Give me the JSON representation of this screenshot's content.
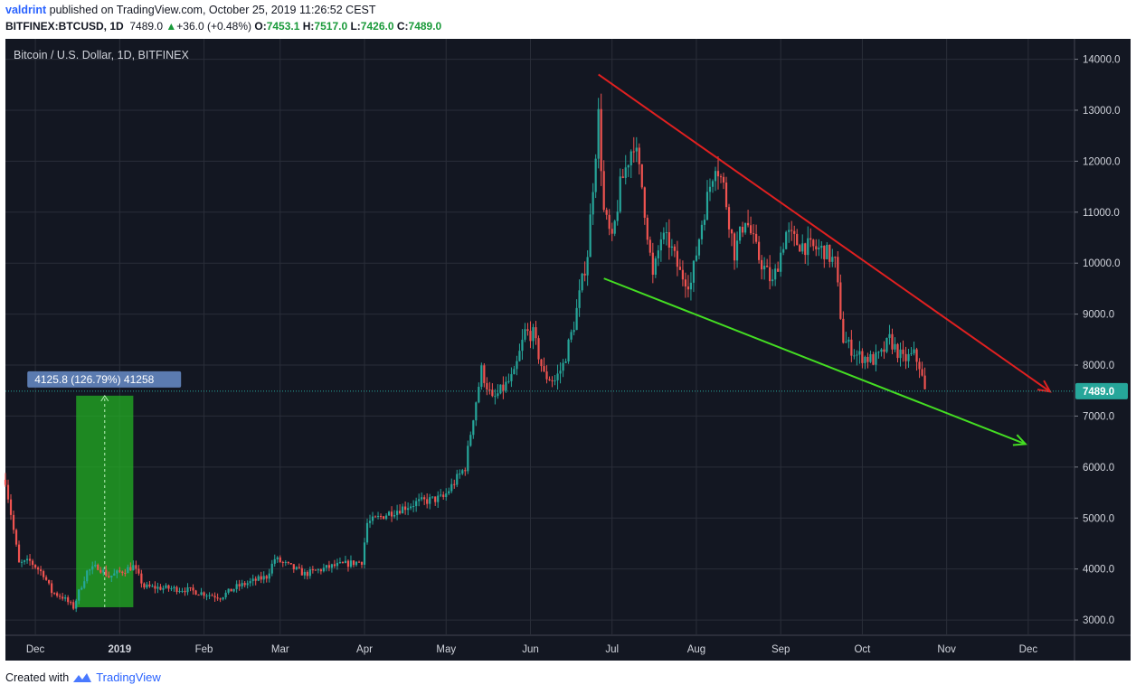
{
  "header": {
    "author": "valdrint",
    "published_text": "published on TradingView.com, October 25, 2019 11:26:52 CEST",
    "symbol": "BITFINEX:BTCUSD, 1D",
    "last": "7489.0",
    "change": "+36.0 (+0.48%)",
    "ohlc": [
      {
        "label": "O:",
        "value": "7453.1"
      },
      {
        "label": "H:",
        "value": "7517.0"
      },
      {
        "label": "L:",
        "value": "7426.0"
      },
      {
        "label": "C:",
        "value": "7489.0"
      }
    ]
  },
  "footer": {
    "created_with": "Created with",
    "brand": "TradingView"
  },
  "colors": {
    "background": "#131722",
    "grid": "#2a2e39",
    "up": "#26a69a",
    "down": "#ef5350",
    "resistance": "#e02020",
    "support": "#44dd22",
    "range_fill": "#22b422",
    "label_bg": "#5b7bb0",
    "price_tag": "#26a69a"
  },
  "chart_data": {
    "type": "candlestick",
    "title": "Bitcoin / U.S. Dollar, 1D, BITFINEX",
    "x_range": [
      "2018-11-20",
      "2019-12-18"
    ],
    "y_range": [
      2700,
      14400
    ],
    "y_ticks": [
      3000,
      4000,
      5000,
      6000,
      7000,
      8000,
      9000,
      10000,
      11000,
      12000,
      13000,
      14000
    ],
    "y_tick_labels": [
      "3000.0",
      "4000.0",
      "5000.0",
      "6000.0",
      "7000.0",
      "8000.0",
      "9000.0",
      "10000.0",
      "11000.0",
      "12000.0",
      "13000.0",
      "14000.0"
    ],
    "x_ticks": [
      {
        "date": "2018-12-01",
        "label": "Dec"
      },
      {
        "date": "2019-01-01",
        "label": "2019"
      },
      {
        "date": "2019-02-01",
        "label": "Feb"
      },
      {
        "date": "2019-03-01",
        "label": "Mar"
      },
      {
        "date": "2019-04-01",
        "label": "Apr"
      },
      {
        "date": "2019-05-01",
        "label": "May"
      },
      {
        "date": "2019-06-01",
        "label": "Jun"
      },
      {
        "date": "2019-07-01",
        "label": "Jul"
      },
      {
        "date": "2019-08-01",
        "label": "Aug"
      },
      {
        "date": "2019-09-01",
        "label": "Sep"
      },
      {
        "date": "2019-10-01",
        "label": "Oct"
      },
      {
        "date": "2019-11-01",
        "label": "Nov"
      },
      {
        "date": "2019-12-01",
        "label": "Dec"
      }
    ],
    "price_anchors": [
      [
        "2018-11-20",
        5750
      ],
      [
        "2018-11-25",
        4100
      ],
      [
        "2018-11-29",
        4150
      ],
      [
        "2018-12-04",
        3900
      ],
      [
        "2018-12-07",
        3550
      ],
      [
        "2018-12-11",
        3450
      ],
      [
        "2018-12-15",
        3250
      ],
      [
        "2018-12-17",
        3550
      ],
      [
        "2018-12-20",
        3950
      ],
      [
        "2018-12-24",
        4050
      ],
      [
        "2018-12-28",
        3850
      ],
      [
        "2019-01-06",
        4050
      ],
      [
        "2019-01-10",
        3650
      ],
      [
        "2019-01-25",
        3600
      ],
      [
        "2019-02-07",
        3450
      ],
      [
        "2019-02-13",
        3650
      ],
      [
        "2019-02-24",
        3850
      ],
      [
        "2019-02-27",
        4200
      ],
      [
        "2019-03-10",
        3900
      ],
      [
        "2019-03-20",
        4050
      ],
      [
        "2019-03-31",
        4150
      ],
      [
        "2019-04-02",
        4900
      ],
      [
        "2019-04-10",
        5100
      ],
      [
        "2019-04-20",
        5300
      ],
      [
        "2019-04-30",
        5400
      ],
      [
        "2019-05-08",
        6000
      ],
      [
        "2019-05-11",
        7000
      ],
      [
        "2019-05-14",
        7900
      ],
      [
        "2019-05-18",
        7300
      ],
      [
        "2019-05-26",
        7800
      ],
      [
        "2019-05-30",
        8650
      ],
      [
        "2019-06-02",
        8600
      ],
      [
        "2019-06-06",
        7800
      ],
      [
        "2019-06-10",
        7700
      ],
      [
        "2019-06-13",
        8000
      ],
      [
        "2019-06-17",
        8800
      ],
      [
        "2019-06-22",
        10200
      ],
      [
        "2019-06-26",
        12900
      ],
      [
        "2019-06-28",
        11000
      ],
      [
        "2019-07-01",
        10400
      ],
      [
        "2019-07-04",
        11500
      ],
      [
        "2019-07-09",
        12400
      ],
      [
        "2019-07-12",
        11500
      ],
      [
        "2019-07-16",
        9700
      ],
      [
        "2019-07-19",
        10500
      ],
      [
        "2019-07-22",
        10400
      ],
      [
        "2019-07-26",
        9800
      ],
      [
        "2019-07-30",
        9600
      ],
      [
        "2019-08-03",
        10800
      ],
      [
        "2019-08-08",
        12000
      ],
      [
        "2019-08-11",
        11500
      ],
      [
        "2019-08-15",
        10200
      ],
      [
        "2019-08-19",
        10900
      ],
      [
        "2019-08-24",
        10100
      ],
      [
        "2019-08-29",
        9600
      ],
      [
        "2019-09-03",
        10600
      ],
      [
        "2019-09-07",
        10400
      ],
      [
        "2019-09-12",
        10300
      ],
      [
        "2019-09-17",
        10250
      ],
      [
        "2019-09-21",
        10000
      ],
      [
        "2019-09-24",
        8500
      ],
      [
        "2019-09-29",
        8200
      ],
      [
        "2019-10-05",
        8100
      ],
      [
        "2019-10-08",
        8200
      ],
      [
        "2019-10-11",
        8500
      ],
      [
        "2019-10-16",
        8100
      ],
      [
        "2019-10-20",
        8200
      ],
      [
        "2019-10-22",
        8000
      ],
      [
        "2019-10-24",
        7480
      ]
    ],
    "trendlines": [
      {
        "from": [
          "2019-06-26",
          13700
        ],
        "to": [
          "2019-12-09",
          7480
        ],
        "color": "resistance"
      },
      {
        "from": [
          "2019-06-28",
          9700
        ],
        "to": [
          "2019-11-30",
          6450
        ],
        "color": "support"
      }
    ],
    "range_measure": {
      "from_date": "2018-12-16",
      "to_date": "2019-01-06",
      "low": 3250,
      "high": 7400,
      "label": "4125.8 (126.79%) 41258"
    },
    "last_price": 7489.0,
    "last_price_label": "7489.0"
  }
}
